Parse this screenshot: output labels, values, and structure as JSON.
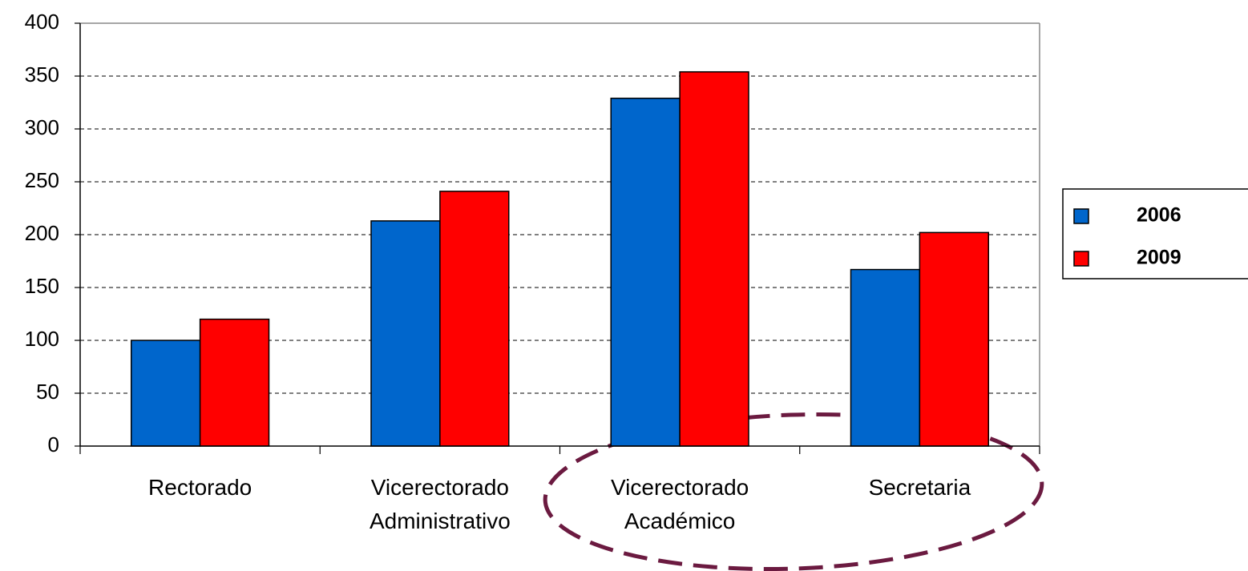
{
  "chart_data": {
    "type": "bar",
    "categories": [
      "Rectorado",
      "Vicerectorado Administrativo",
      "Vicerectorado Académico",
      "Secretaria"
    ],
    "series": [
      {
        "name": "2006",
        "color": "#0066cc",
        "values": [
          100,
          213,
          329,
          167
        ]
      },
      {
        "name": "2009",
        "color": "#ff0000",
        "values": [
          120,
          241,
          354,
          202
        ]
      }
    ],
    "ylim": [
      0,
      400
    ],
    "yticks": [
      0,
      50,
      100,
      150,
      200,
      250,
      300,
      350,
      400
    ],
    "grid": true,
    "legend": "right"
  }
}
